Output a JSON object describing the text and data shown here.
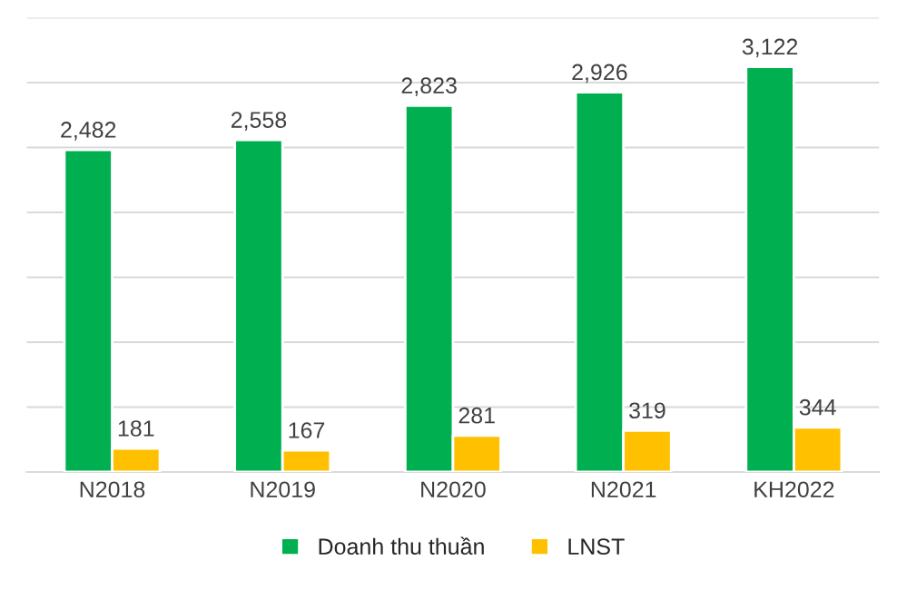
{
  "chart_data": {
    "type": "bar",
    "categories": [
      "N2018",
      "N2019",
      "N2020",
      "N2021",
      "KH2022"
    ],
    "series": [
      {
        "name": "Doanh thu thuần",
        "color": "#00b050",
        "values": [
          2482,
          2558,
          2823,
          2926,
          3122
        ],
        "value_labels": [
          "2,482",
          "2,558",
          "2,823",
          "2,926",
          "3,122"
        ]
      },
      {
        "name": "LNST",
        "color": "#ffc000",
        "values": [
          181,
          167,
          281,
          319,
          344
        ],
        "value_labels": [
          "181",
          "167",
          "281",
          "319",
          "344"
        ]
      }
    ],
    "ylim": [
      0,
      3500
    ],
    "yticks": [
      {
        "value": 0,
        "label": null
      },
      {
        "value": 500,
        "label": null
      },
      {
        "value": 1000,
        "label": null
      },
      {
        "value": 1500,
        "label": null
      },
      {
        "value": 2000,
        "label": null
      },
      {
        "value": 2500,
        "label": null
      },
      {
        "value": 3000,
        "label": null
      },
      {
        "value": 3500,
        "label": null
      }
    ],
    "tick_labels": "x",
    "grid": "y",
    "legend": "bottom"
  }
}
